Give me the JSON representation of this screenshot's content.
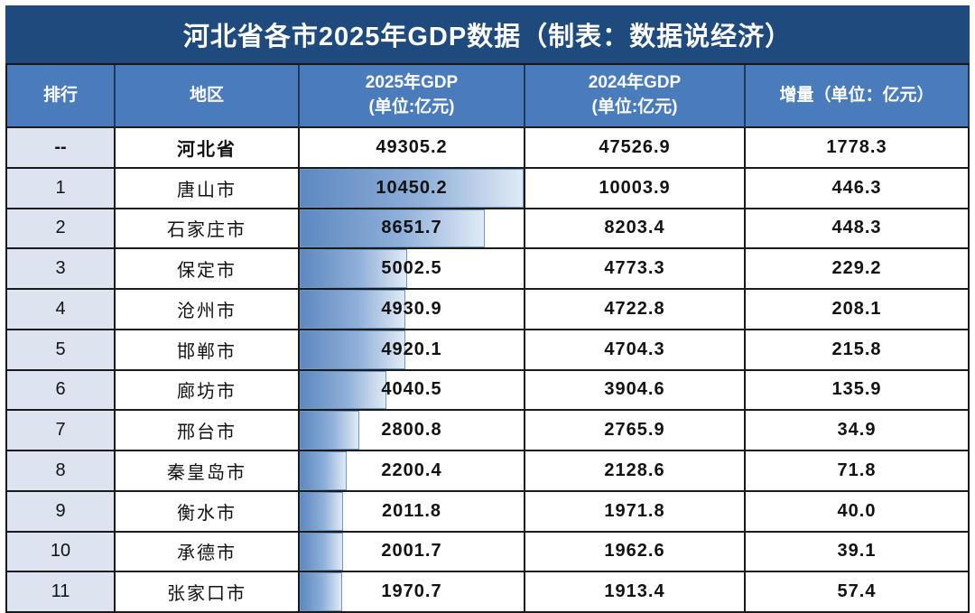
{
  "title": "河北省各市2025年GDP数据（制表：数据说经济）",
  "colors": {
    "title_bg": "#1f4a7d",
    "header_bg": "#4a7cbb",
    "rank_column_bg": "#dce4f0",
    "grid_line": "#1a1a1a",
    "bar_gradient_start": "#5d88c0",
    "bar_gradient_end": "#dfeaf6",
    "bar_border": "#6e97c8"
  },
  "table": {
    "columns": [
      {
        "title": "排行",
        "subtitle": ""
      },
      {
        "title": "地区",
        "subtitle": ""
      },
      {
        "title": "2025年GDP",
        "subtitle": "(单位:亿元)"
      },
      {
        "title": "2024年GDP",
        "subtitle": "(单位:亿元)"
      },
      {
        "title": "增量（单位：亿元）",
        "subtitle": ""
      }
    ],
    "rows": [
      {
        "rank": "--",
        "region": "河北省",
        "gdp2025": "49305.2",
        "gdp2024": "47526.9",
        "increase": "1778.3",
        "bar_pct": 0,
        "bold": true
      },
      {
        "rank": "1",
        "region": "唐山市",
        "gdp2025": "10450.2",
        "gdp2024": "10003.9",
        "increase": "446.3",
        "bar_pct": 100,
        "bold": false
      },
      {
        "rank": "2",
        "region": "石家庄市",
        "gdp2025": "8651.7",
        "gdp2024": "8203.4",
        "increase": "448.3",
        "bar_pct": 82.8,
        "bold": false
      },
      {
        "rank": "3",
        "region": "保定市",
        "gdp2025": "5002.5",
        "gdp2024": "4773.3",
        "increase": "229.2",
        "bar_pct": 47.9,
        "bold": false
      },
      {
        "rank": "4",
        "region": "沧州市",
        "gdp2025": "4930.9",
        "gdp2024": "4722.8",
        "increase": "208.1",
        "bar_pct": 47.2,
        "bold": false
      },
      {
        "rank": "5",
        "region": "邯郸市",
        "gdp2025": "4920.1",
        "gdp2024": "4704.3",
        "increase": "215.8",
        "bar_pct": 47.1,
        "bold": false
      },
      {
        "rank": "6",
        "region": "廊坊市",
        "gdp2025": "4040.5",
        "gdp2024": "3904.6",
        "increase": "135.9",
        "bar_pct": 38.7,
        "bold": false
      },
      {
        "rank": "7",
        "region": "邢台市",
        "gdp2025": "2800.8",
        "gdp2024": "2765.9",
        "increase": "34.9",
        "bar_pct": 26.8,
        "bold": false
      },
      {
        "rank": "8",
        "region": "秦皇岛市",
        "gdp2025": "2200.4",
        "gdp2024": "2128.6",
        "increase": "71.8",
        "bar_pct": 21.1,
        "bold": false
      },
      {
        "rank": "9",
        "region": "衡水市",
        "gdp2025": "2011.8",
        "gdp2024": "1971.8",
        "increase": "40.0",
        "bar_pct": 19.3,
        "bold": false
      },
      {
        "rank": "10",
        "region": "承德市",
        "gdp2025": "2001.7",
        "gdp2024": "1962.6",
        "increase": "39.1",
        "bar_pct": 19.2,
        "bold": false
      },
      {
        "rank": "11",
        "region": "张家口市",
        "gdp2025": "1970.7",
        "gdp2024": "1913.4",
        "increase": "57.4",
        "bar_pct": 18.9,
        "bold": false
      }
    ]
  },
  "chart_data": {
    "type": "table",
    "title": "河北省各市2025年GDP数据（制表：数据说经济）",
    "columns": [
      "排行",
      "地区",
      "2025年GDP (单位:亿元)",
      "2024年GDP (单位:亿元)",
      "增量（单位：亿元）"
    ],
    "rows": [
      [
        "--",
        "河北省",
        49305.2,
        47526.9,
        1778.3
      ],
      [
        "1",
        "唐山市",
        10450.2,
        10003.9,
        446.3
      ],
      [
        "2",
        "石家庄市",
        8651.7,
        8203.4,
        448.3
      ],
      [
        "3",
        "保定市",
        5002.5,
        4773.3,
        229.2
      ],
      [
        "4",
        "沧州市",
        4930.9,
        4722.8,
        208.1
      ],
      [
        "5",
        "邯郸市",
        4920.1,
        4704.3,
        215.8
      ],
      [
        "6",
        "廊坊市",
        4040.5,
        3904.6,
        135.9
      ],
      [
        "7",
        "邢台市",
        2800.8,
        2765.9,
        34.9
      ],
      [
        "8",
        "秦皇岛市",
        2200.4,
        2128.6,
        71.8
      ],
      [
        "9",
        "衡水市",
        2011.8,
        1971.8,
        40.0
      ],
      [
        "10",
        "承德市",
        2001.7,
        1962.6,
        39.1
      ],
      [
        "11",
        "张家口市",
        1970.7,
        1913.4,
        57.4
      ]
    ],
    "notes": {
      "data_bars_column": "2025年GDP",
      "data_bars_scale_max": 10450.2,
      "province_total_row_has_no_bar": true
    }
  }
}
